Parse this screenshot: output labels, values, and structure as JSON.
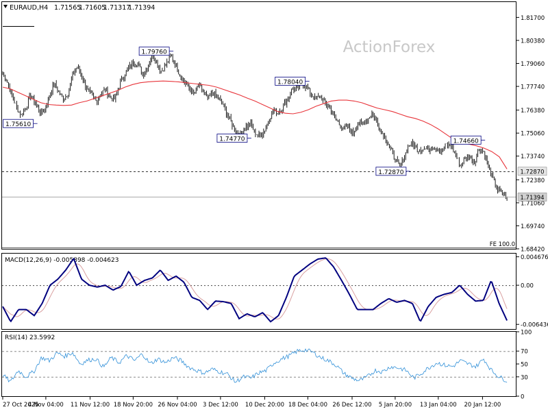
{
  "chart_data": {
    "type": "line",
    "title": "EURAUD,H4",
    "ohlc": {
      "open": "1.71565",
      "high": "1.71605",
      "low": "1.71317",
      "close": "1.71394"
    },
    "watermark": "ActionForex",
    "price_axis": {
      "range": [
        1.6842,
        1.8258
      ],
      "ticks": [
        "1.81700",
        "1.80380",
        "1.79060",
        "1.77740",
        "1.76380",
        "1.75060",
        "1.73740",
        "1.72380",
        "1.71060",
        "1.69740",
        "1.68420"
      ],
      "tick_values": [
        1.817,
        1.8038,
        1.7906,
        1.7774,
        1.7638,
        1.7506,
        1.7374,
        1.7238,
        1.7106,
        1.6974,
        1.6842
      ]
    },
    "price_series": [
      1.785,
      1.78,
      1.772,
      1.765,
      1.761,
      1.766,
      1.772,
      1.768,
      1.762,
      1.764,
      1.772,
      1.779,
      1.774,
      1.77,
      1.774,
      1.784,
      1.789,
      1.783,
      1.776,
      1.772,
      1.769,
      1.773,
      1.776,
      1.771,
      1.77,
      1.778,
      1.784,
      1.788,
      1.792,
      1.79,
      1.784,
      1.788,
      1.796,
      1.791,
      1.786,
      1.79,
      1.795,
      1.79,
      1.784,
      1.78,
      1.776,
      1.773,
      1.778,
      1.774,
      1.77,
      1.774,
      1.771,
      1.768,
      1.762,
      1.756,
      1.752,
      1.75,
      1.754,
      1.756,
      1.751,
      1.749,
      1.752,
      1.758,
      1.764,
      1.762,
      1.766,
      1.77,
      1.776,
      1.775,
      1.78,
      1.777,
      1.773,
      1.77,
      1.772,
      1.768,
      1.765,
      1.76,
      1.756,
      1.753,
      1.754,
      1.75,
      1.756,
      1.756,
      1.758,
      1.762,
      1.758,
      1.752,
      1.748,
      1.742,
      1.736,
      1.731,
      1.737,
      1.744,
      1.744,
      1.741,
      1.742,
      1.741,
      1.743,
      1.742,
      1.74,
      1.744,
      1.743,
      1.738,
      1.732,
      1.736,
      1.737,
      1.734,
      1.742,
      1.74,
      1.731,
      1.724,
      1.718,
      1.716,
      1.71394
    ],
    "ma_series": [
      1.777,
      1.776,
      1.774,
      1.772,
      1.77,
      1.768,
      1.767,
      1.7667,
      1.7665,
      1.7667,
      1.768,
      1.769,
      1.7705,
      1.772,
      1.7735,
      1.775,
      1.777,
      1.7785,
      1.7795,
      1.78,
      1.7803,
      1.7805,
      1.7803,
      1.78,
      1.7795,
      1.779,
      1.7785,
      1.778,
      1.777,
      1.7755,
      1.774,
      1.7725,
      1.7707,
      1.769,
      1.767,
      1.765,
      1.763,
      1.762,
      1.7617,
      1.7625,
      1.764,
      1.766,
      1.7675,
      1.769,
      1.7695,
      1.7695,
      1.769,
      1.768,
      1.7665,
      1.765,
      1.764,
      1.763,
      1.7615,
      1.76,
      1.759,
      1.7575,
      1.7555,
      1.753,
      1.75,
      1.747,
      1.745,
      1.7443,
      1.7433,
      1.742,
      1.74,
      1.737,
      1.73
    ],
    "ma_x": [
      0,
      5,
      10,
      15,
      20,
      25,
      30,
      35,
      40,
      45,
      50,
      55,
      60,
      65,
      70,
      75,
      80,
      85,
      90,
      95,
      100,
      105,
      110,
      115,
      120,
      125,
      130,
      135,
      140,
      145,
      150,
      155,
      160,
      165,
      170,
      175,
      180,
      185,
      190,
      195,
      200,
      205,
      210,
      215,
      220,
      225,
      230,
      235,
      240,
      245,
      250,
      255,
      260,
      265,
      270,
      275,
      280,
      285,
      290,
      295,
      300,
      305,
      310,
      315,
      320,
      325,
      330
    ],
    "swing_labels": [
      "1.75610",
      "1.79760",
      "1.74770",
      "1.78040",
      "1.72870",
      "1.74660"
    ],
    "swing_points": [
      {
        "label": "1.75610",
        "bar": 20,
        "price": 1.7561,
        "side": "left"
      },
      {
        "label": "1.79760",
        "bar": 109,
        "price": 1.7976,
        "side": "left"
      },
      {
        "label": "1.74770",
        "bar": 160,
        "price": 1.7477,
        "side": "left"
      },
      {
        "label": "1.78040",
        "bar": 198,
        "price": 1.7804,
        "side": "left"
      },
      {
        "label": "1.72870",
        "bar": 264,
        "price": 1.7287,
        "side": "left"
      },
      {
        "label": "1.74660",
        "bar": 313,
        "price": 1.7466,
        "side": "left"
      }
    ],
    "levels": [
      {
        "price": 1.7287,
        "label": "1.72870",
        "style": "dashed"
      },
      {
        "price": 1.71394,
        "label": "1.71394",
        "style": "solid"
      }
    ],
    "fe_label": "FE 100.0",
    "macd": {
      "label": "MACD(12,26,9) -0.005898 -0.004623",
      "range": [
        -0.0072,
        0.0052
      ],
      "ticks": [
        "0.004676",
        "0.00",
        "-0.006436"
      ],
      "tick_values": [
        0.004676,
        0.0,
        -0.006436
      ],
      "values": [
        -0.0035,
        -0.006,
        -0.004,
        -0.004,
        -0.005,
        -0.003,
        0.0,
        0.001,
        0.0025,
        0.0044,
        0.001,
        0.0,
        -0.0003,
        0.0,
        -0.0008,
        -0.0002,
        0.0023,
        0.0,
        0.0008,
        0.0012,
        0.0025,
        0.0008,
        0.0015,
        0.0005,
        -0.002,
        -0.0025,
        -0.004,
        -0.0026,
        -0.0027,
        -0.003,
        -0.0055,
        -0.0047,
        -0.0052,
        -0.0045,
        -0.006,
        -0.005,
        -0.002,
        0.0015,
        0.0025,
        0.0035,
        0.0043,
        0.0045,
        0.003,
        0.0008,
        -0.0015,
        -0.004,
        -0.004,
        -0.004,
        -0.003,
        -0.0022,
        -0.0028,
        -0.0025,
        -0.003,
        -0.006,
        -0.0035,
        -0.002,
        -0.0015,
        -0.0012,
        0.0,
        -0.0015,
        -0.0026,
        -0.0025,
        0.0008,
        -0.003,
        -0.0058
      ]
    },
    "rsi": {
      "label": "RSI(14) 23.5992",
      "range": [
        0,
        100
      ],
      "ticks": [
        "100",
        "70",
        "50",
        "30",
        "0"
      ],
      "tick_values": [
        100,
        70,
        50,
        30,
        0
      ],
      "values": [
        33,
        22,
        40,
        30,
        38,
        60,
        55,
        67,
        62,
        68,
        50,
        56,
        58,
        45,
        60,
        52,
        63,
        55,
        66,
        50,
        58,
        52,
        60,
        55,
        45,
        40,
        36,
        42,
        38,
        34,
        22,
        30,
        28,
        36,
        40,
        52,
        58,
        63,
        70,
        72,
        68,
        60,
        55,
        48,
        35,
        28,
        24,
        30,
        40,
        38,
        46,
        44,
        40,
        28,
        36,
        45,
        52,
        48,
        46,
        55,
        50,
        46,
        58,
        40,
        30,
        24
      ]
    },
    "time_axis": {
      "labels": [
        "27 Oct 2025",
        "4 Nov 04:00",
        "11 Nov 12:00",
        "18 Nov 20:00",
        "26 Nov 04:00",
        "3 Dec 12:00",
        "10 Dec 20:00",
        "18 Dec 04:00",
        "26 Dec 12:00",
        "5 Jan 20:00",
        "13 Jan 04:00",
        "20 Jan 12:00"
      ],
      "bars": [
        0,
        37,
        75,
        112,
        150,
        187,
        225,
        262,
        300,
        337,
        374,
        412
      ]
    },
    "colors": {
      "ma": "#e8343a",
      "macd": "#00007f",
      "signal": "#d9a0a0",
      "rsi": "#2f8fd8",
      "candles": "#000000",
      "watermark": "#c8c8c8",
      "grid": "#000000"
    }
  }
}
